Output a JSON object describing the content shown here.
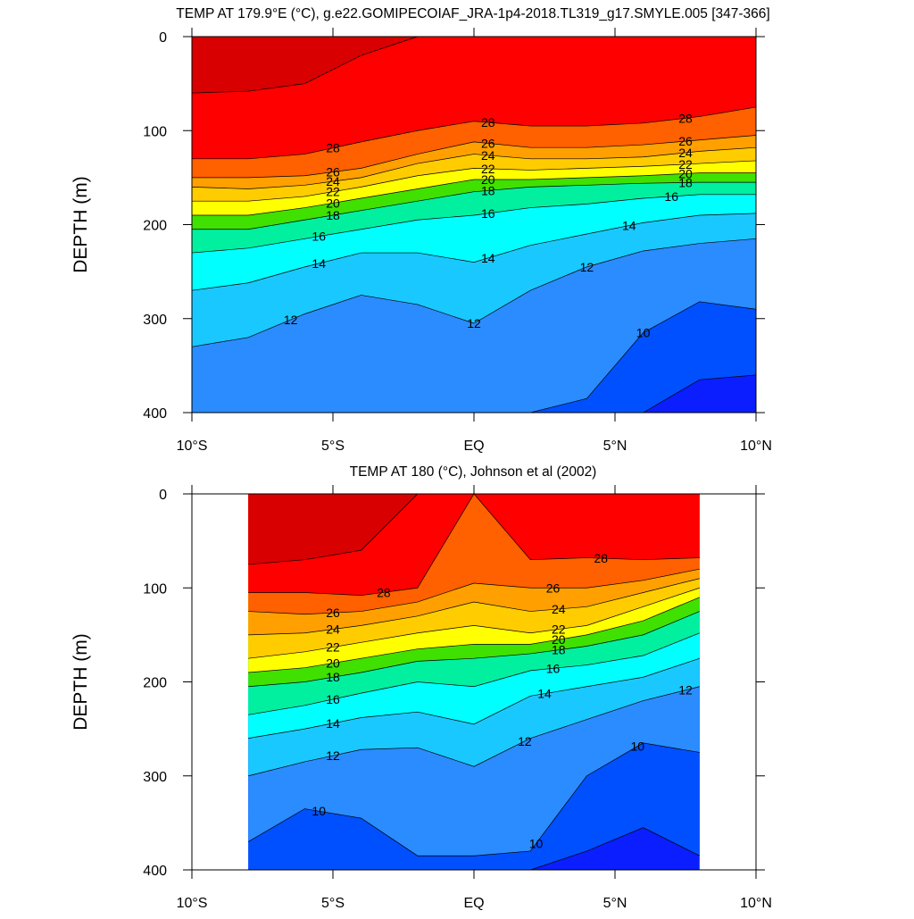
{
  "chart_data": [
    {
      "type": "contour",
      "title": "TEMP AT 179.9°E (°C), g.e22.GOMIPECOIAF_JRA-1p4-2018.TL319_g17.SMYLE.005 [347-366]",
      "ylabel": "DEPTH (m)",
      "x": [
        -10,
        -8,
        -6,
        -4,
        -2,
        0,
        2,
        4,
        6,
        8,
        10
      ],
      "xlim": [
        -10,
        10
      ],
      "ylim": [
        0,
        400
      ],
      "xticks": [
        {
          "value": -10,
          "label": "10°S"
        },
        {
          "value": -5,
          "label": "5°S"
        },
        {
          "value": 0,
          "label": "EQ"
        },
        {
          "value": 5,
          "label": "5°N"
        },
        {
          "value": 10,
          "label": "10°N"
        }
      ],
      "yticks": [
        0,
        100,
        200,
        300,
        400
      ],
      "base_color": "#0a1eff",
      "levels": [
        {
          "value": 9,
          "color": "#0050ff",
          "depths": [
            400,
            400,
            400,
            400,
            400,
            400,
            400,
            400,
            400,
            365,
            360
          ],
          "label_x": []
        },
        {
          "value": 10,
          "color": "#2a8cff",
          "depths": [
            400,
            400,
            400,
            400,
            400,
            400,
            400,
            385,
            315,
            282,
            290
          ],
          "label_x": [
            6
          ]
        },
        {
          "value": 12,
          "color": "#19c8ff",
          "depths": [
            330,
            320,
            295,
            275,
            285,
            305,
            270,
            245,
            228,
            220,
            215
          ],
          "label_x": [
            -6.5,
            0,
            4
          ]
        },
        {
          "value": 14,
          "color": "#00ffff",
          "depths": [
            270,
            262,
            245,
            230,
            230,
            240,
            222,
            210,
            198,
            190,
            188
          ],
          "label_x": [
            -5.5,
            0.5,
            5.5
          ]
        },
        {
          "value": 16,
          "color": "#00f0a0",
          "depths": [
            230,
            225,
            215,
            205,
            195,
            190,
            182,
            178,
            172,
            168,
            168
          ],
          "label_x": [
            -5.5,
            0.5,
            7
          ]
        },
        {
          "value": 18,
          "color": "#40e000",
          "depths": [
            205,
            205,
            195,
            185,
            175,
            165,
            160,
            158,
            156,
            155,
            155
          ],
          "label_x": [
            -5,
            0.5,
            7.5
          ]
        },
        {
          "value": 20,
          "color": "#ffff00",
          "depths": [
            190,
            190,
            182,
            172,
            162,
            152,
            152,
            150,
            148,
            145,
            145
          ],
          "label_x": [
            -5,
            0.5,
            7.5
          ]
        },
        {
          "value": 22,
          "color": "#ffcc00",
          "depths": [
            175,
            175,
            170,
            160,
            148,
            140,
            142,
            140,
            138,
            135,
            132
          ],
          "label_x": [
            -5,
            0.5,
            7.5
          ]
        },
        {
          "value": 24,
          "color": "#ffa000",
          "depths": [
            160,
            162,
            158,
            150,
            135,
            125,
            130,
            130,
            128,
            122,
            118
          ],
          "label_x": [
            -5,
            0.5,
            7.5
          ]
        },
        {
          "value": 26,
          "color": "#ff6000",
          "depths": [
            150,
            150,
            148,
            140,
            125,
            112,
            118,
            118,
            115,
            110,
            105
          ],
          "label_x": [
            -5,
            0.5,
            7.5
          ]
        },
        {
          "value": 28,
          "color": "#ff0000",
          "depths": [
            130,
            130,
            125,
            112,
            100,
            90,
            95,
            95,
            92,
            85,
            75
          ],
          "label_x": [
            -5,
            0.5,
            7.5
          ]
        },
        {
          "value": 29,
          "color": "#d80000",
          "depths": [
            60,
            58,
            50,
            20,
            0,
            0,
            0,
            0,
            0,
            0,
            0
          ],
          "label_x": []
        }
      ]
    },
    {
      "type": "contour",
      "title": "TEMP AT 180 (°C), Johnson et al (2002)",
      "ylabel": "DEPTH (m)",
      "x": [
        -8,
        -6,
        -4,
        -2,
        0,
        2,
        4,
        6,
        8
      ],
      "xlim": [
        -10,
        10
      ],
      "ylim": [
        0,
        400
      ],
      "xticks": [
        {
          "value": -10,
          "label": "10°S"
        },
        {
          "value": -5,
          "label": "5°S"
        },
        {
          "value": 0,
          "label": "EQ"
        },
        {
          "value": 5,
          "label": "5°N"
        },
        {
          "value": 10,
          "label": "10°N"
        }
      ],
      "yticks": [
        0,
        100,
        200,
        300,
        400
      ],
      "base_color": "#0a1eff",
      "levels": [
        {
          "value": 9,
          "color": "#0050ff",
          "depths": [
            400,
            400,
            400,
            400,
            400,
            400,
            380,
            355,
            385
          ],
          "label_x": []
        },
        {
          "value": 10,
          "color": "#2a8cff",
          "depths": [
            370,
            335,
            345,
            385,
            385,
            380,
            300,
            265,
            275
          ],
          "label_x": [
            -5.5,
            2.2,
            5.8
          ]
        },
        {
          "value": 12,
          "color": "#19c8ff",
          "depths": [
            300,
            285,
            272,
            270,
            290,
            260,
            240,
            220,
            205
          ],
          "label_x": [
            -5,
            1.8,
            7.5
          ]
        },
        {
          "value": 14,
          "color": "#00ffff",
          "depths": [
            260,
            250,
            238,
            232,
            245,
            215,
            205,
            195,
            175
          ],
          "label_x": [
            -5,
            2.5
          ]
        },
        {
          "value": 16,
          "color": "#00f0a0",
          "depths": [
            235,
            225,
            212,
            200,
            205,
            188,
            182,
            172,
            148
          ],
          "label_x": [
            -5,
            2.8
          ]
        },
        {
          "value": 18,
          "color": "#40e000",
          "depths": [
            205,
            200,
            190,
            178,
            175,
            170,
            162,
            150,
            125
          ],
          "label_x": [
            -5,
            3
          ]
        },
        {
          "value": 20,
          "color": "#ffff00",
          "depths": [
            190,
            185,
            175,
            165,
            160,
            160,
            150,
            135,
            110
          ],
          "label_x": [
            -5,
            3
          ]
        },
        {
          "value": 22,
          "color": "#ffcc00",
          "depths": [
            175,
            168,
            158,
            148,
            140,
            148,
            140,
            120,
            100
          ],
          "label_x": [
            -5,
            3
          ]
        },
        {
          "value": 24,
          "color": "#ffa000",
          "depths": [
            150,
            148,
            140,
            130,
            115,
            125,
            120,
            105,
            90
          ],
          "label_x": [
            -5,
            3
          ]
        },
        {
          "value": 26,
          "color": "#ff6000",
          "depths": [
            125,
            128,
            125,
            115,
            95,
            100,
            100,
            92,
            80
          ],
          "label_x": [
            -5,
            2.8
          ]
        },
        {
          "value": 28,
          "color": "#ff0000",
          "depths": [
            105,
            105,
            108,
            100,
            0,
            70,
            68,
            70,
            68
          ],
          "label_x": [
            -3.2,
            4.5
          ]
        },
        {
          "value": 29,
          "color": "#d80000",
          "depths": [
            75,
            70,
            60,
            0,
            0,
            0,
            0,
            0,
            0
          ],
          "label_x": []
        }
      ]
    }
  ]
}
